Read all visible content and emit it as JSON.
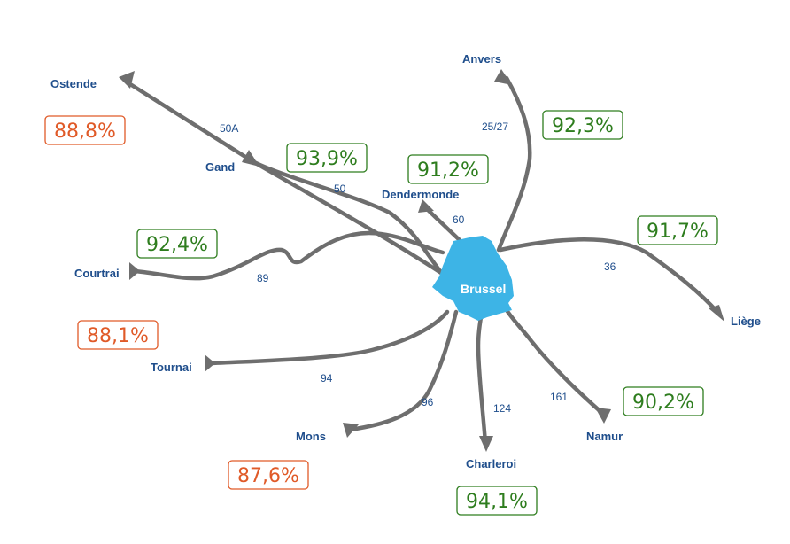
{
  "hub": {
    "label": "Brussel",
    "color": "#3db4e6"
  },
  "colors": {
    "good": "#2e7d1e",
    "bad": "#e05a28",
    "route": "#6e6e6e",
    "city": "#1f4e8c"
  },
  "routes": [
    {
      "id": "ostende",
      "city": "Ostende",
      "line": "50A",
      "pct": "88,8%",
      "status": "bad"
    },
    {
      "id": "gand",
      "city": "Gand",
      "line": "50",
      "pct": "93,9%",
      "status": "good"
    },
    {
      "id": "anvers",
      "city": "Anvers",
      "line": "25/27",
      "pct": "92,3%",
      "status": "good"
    },
    {
      "id": "dendermonde",
      "city": "Dendermonde",
      "line": "60",
      "pct": "91,2%",
      "status": "good"
    },
    {
      "id": "courtrai",
      "city": "Courtrai",
      "line": "89",
      "pct": "92,4%",
      "status": "good"
    },
    {
      "id": "liege",
      "city": "Liège",
      "line": "36",
      "pct": "91,7%",
      "status": "good"
    },
    {
      "id": "tournai",
      "city": "Tournai",
      "line": "94",
      "pct": "88,1%",
      "status": "bad"
    },
    {
      "id": "mons",
      "city": "Mons",
      "line": "96",
      "pct": "87,6%",
      "status": "bad"
    },
    {
      "id": "charleroi",
      "city": "Charleroi",
      "line": "124",
      "pct": "94,1%",
      "status": "good"
    },
    {
      "id": "namur",
      "city": "Namur",
      "line": "161",
      "pct": "90,2%",
      "status": "good"
    }
  ]
}
